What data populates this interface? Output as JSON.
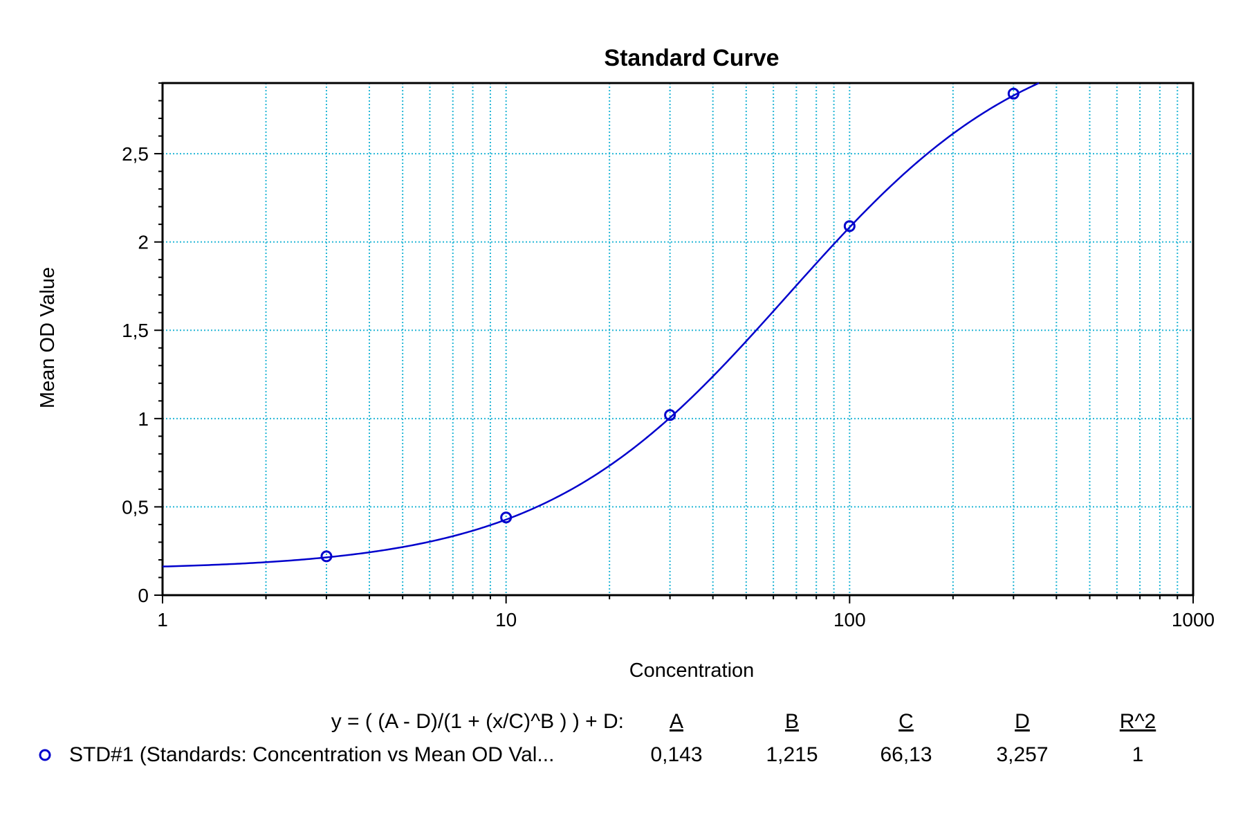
{
  "chart_data": {
    "type": "scatter",
    "title": "Standard Curve",
    "xlabel": "Concentration",
    "ylabel": "Mean OD Value",
    "x_scale": "log",
    "xlim": [
      1,
      1000
    ],
    "ylim": [
      0,
      2.9
    ],
    "x_ticks": [
      1,
      10,
      100,
      1000
    ],
    "x_tick_labels": [
      "1",
      "10",
      "100",
      "1000"
    ],
    "y_ticks": [
      0,
      0.5,
      1,
      1.5,
      2,
      2.5
    ],
    "y_tick_labels": [
      "0",
      "0,5",
      "1",
      "1,5",
      "2",
      "2,5"
    ],
    "grid": true,
    "series": [
      {
        "name": "STD#1 (Standards: Concentration vs Mean OD Val...",
        "x": [
          3,
          10,
          30,
          100,
          300
        ],
        "y": [
          0.22,
          0.44,
          1.02,
          2.09,
          2.84
        ],
        "fit": {
          "model": "4PL",
          "A": 0.143,
          "B": 1.215,
          "C": 66.13,
          "D": 3.257
        },
        "color": "#0000cc",
        "marker": "circle"
      }
    ],
    "legend": {
      "equation": "y = ( (A - D)/(1 + (x/C)^B ) ) + D:",
      "columns": [
        "A",
        "B",
        "C",
        "D",
        "R^2"
      ],
      "values": [
        "0,143",
        "1,215",
        "66,13",
        "3,257",
        "1"
      ]
    },
    "colors": {
      "grid": "#23b6d6",
      "curve": "#0000cc",
      "axis": "#000000"
    }
  }
}
